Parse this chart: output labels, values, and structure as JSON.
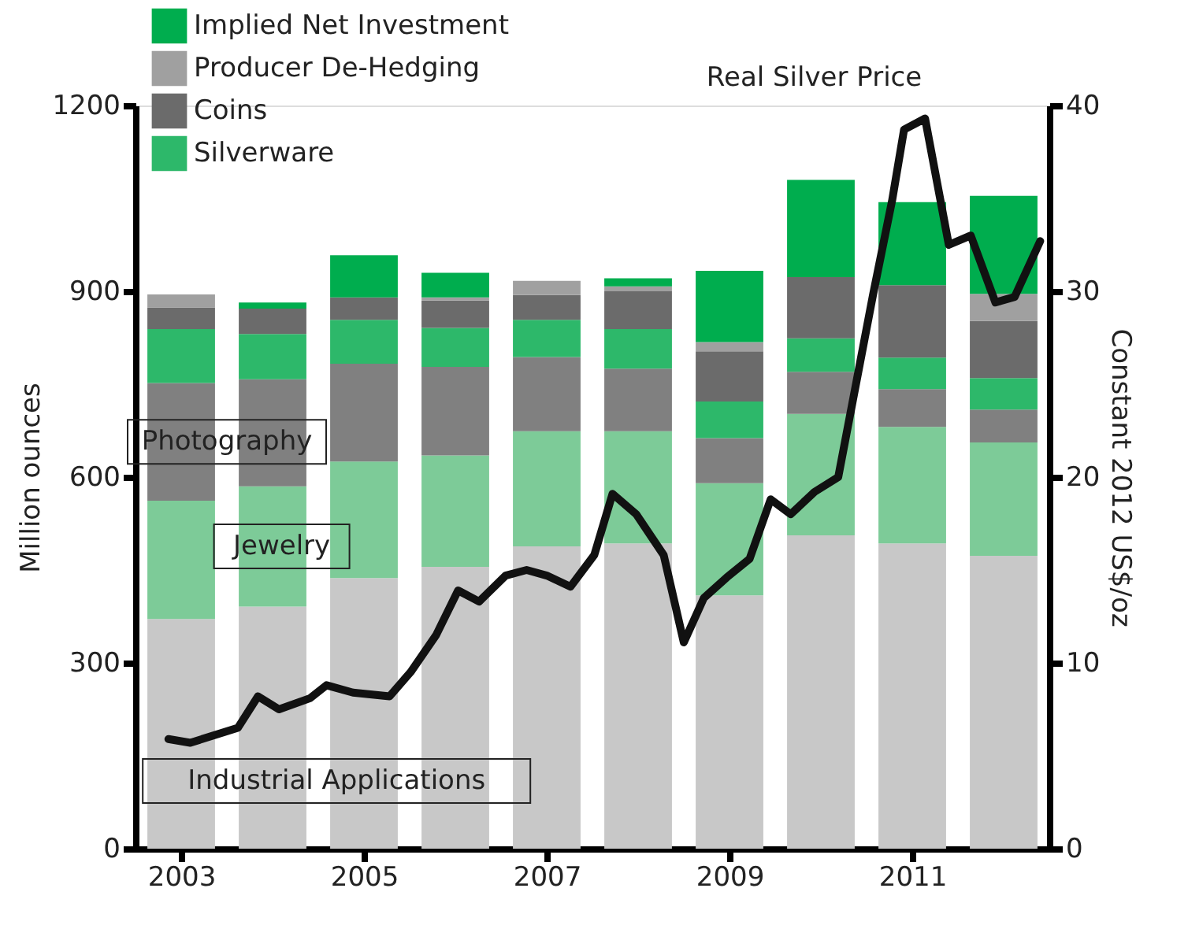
{
  "chart_data": {
    "type": "bar",
    "stacked": true,
    "x": [
      2003,
      2004,
      2005,
      2006,
      2007,
      2008,
      2009,
      2010,
      2011,
      2012
    ],
    "xlim": [
      2002.5,
      2012.5
    ],
    "xticks": [
      2003,
      2005,
      2007,
      2009,
      2011
    ],
    "ylabel": "Million ounces",
    "y2label": "Constant 2012 US$/oz",
    "ylim": [
      0,
      1200
    ],
    "yticks": [
      0,
      300,
      600,
      900,
      1200
    ],
    "y2lim": [
      0,
      40
    ],
    "y2ticks": [
      0,
      10,
      20,
      30,
      40
    ],
    "grid": false,
    "legend": "top left",
    "series": [
      {
        "name": "Industrial Applications",
        "color": "#c8c8c8",
        "values": [
          371,
          391,
          437,
          455,
          488,
          493,
          409,
          506,
          493,
          473
        ]
      },
      {
        "name": "Jewelry",
        "color": "#7dcb98",
        "values": [
          191,
          194,
          188,
          180,
          186,
          181,
          181,
          196,
          188,
          183
        ]
      },
      {
        "name": "Photography",
        "color": "#808080",
        "values": [
          190,
          173,
          158,
          143,
          120,
          101,
          73,
          68,
          61,
          53
        ]
      },
      {
        "name": "Silverware",
        "color": "#2db86a",
        "values": [
          87,
          73,
          71,
          63,
          60,
          64,
          59,
          54,
          51,
          51
        ]
      },
      {
        "name": "Coins",
        "color": "#6b6b6b",
        "values": [
          35,
          41,
          36,
          44,
          40,
          61,
          81,
          99,
          117,
          92
        ]
      },
      {
        "name": "Producer De-Hedging",
        "color": "#a0a0a0",
        "values": [
          21,
          0,
          0,
          5,
          23,
          8,
          15,
          0,
          0,
          44
        ]
      },
      {
        "name": "Implied Net Investment",
        "color": "#00ad4e",
        "values": [
          0,
          10,
          68,
          40,
          0,
          13,
          115,
          157,
          134,
          158
        ]
      },
      {
        "name": "Real Silver Price",
        "type": "line",
        "axis": "y2",
        "color": "#111111",
        "x": [
          2002.86,
          2003.1,
          2003.62,
          2003.84,
          2004.07,
          2004.41,
          2004.59,
          2004.88,
          2005.28,
          2005.51,
          2005.79,
          2006.03,
          2006.26,
          2006.55,
          2006.78,
          2007.0,
          2007.26,
          2007.52,
          2007.72,
          2007.98,
          2008.28,
          2008.5,
          2008.72,
          2008.97,
          2009.22,
          2009.45,
          2009.67,
          2009.93,
          2010.19,
          2010.57,
          2010.78,
          2010.91,
          2011.14,
          2011.4,
          2011.64,
          2011.91,
          2012.12,
          2012.4
        ],
        "values": [
          5.9,
          5.7,
          6.5,
          8.2,
          7.5,
          8.1,
          8.8,
          8.4,
          8.2,
          9.5,
          11.5,
          13.9,
          13.3,
          14.7,
          15.0,
          14.7,
          14.1,
          15.8,
          19.1,
          18.0,
          15.8,
          11.1,
          13.5,
          14.6,
          15.6,
          18.8,
          18.0,
          19.2,
          20.0,
          29.8,
          34.9,
          38.7,
          39.3,
          32.5,
          33.0,
          29.4,
          29.7,
          32.7
        ]
      }
    ]
  }
}
